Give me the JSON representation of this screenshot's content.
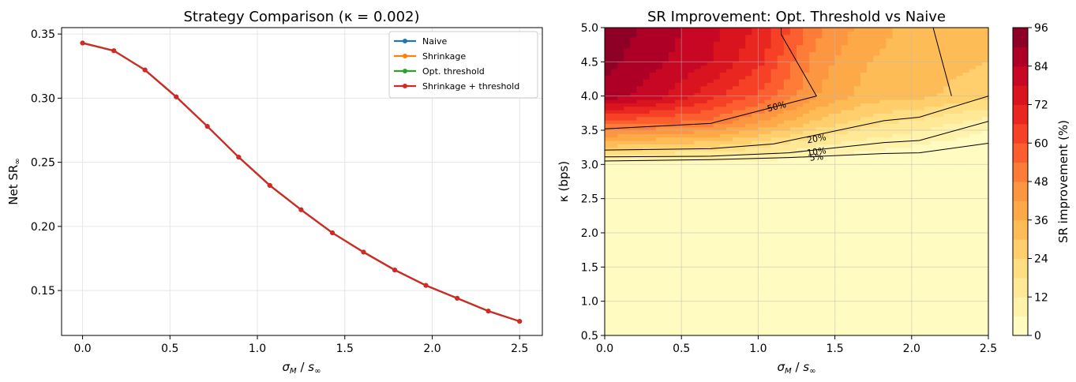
{
  "chart_data": [
    {
      "type": "line",
      "title": "Strategy Comparison (κ = 0.002)",
      "xlabel": "σ_M / s_∞",
      "ylabel": "Net SR∞",
      "xlim": [
        -0.12,
        2.63
      ],
      "ylim": [
        0.115,
        0.355
      ],
      "xticks": [
        0.0,
        0.5,
        1.0,
        1.5,
        2.0,
        2.5
      ],
      "xtick_labels": [
        "0.0",
        "0.5",
        "1.0",
        "1.5",
        "2.0",
        "2.5"
      ],
      "yticks": [
        0.15,
        0.2,
        0.25,
        0.3,
        0.35
      ],
      "ytick_labels": [
        "0.15",
        "0.20",
        "0.25",
        "0.30",
        "0.35"
      ],
      "grid": true,
      "legend_position": "top-right",
      "x": [
        0.0,
        0.179,
        0.357,
        0.536,
        0.714,
        0.893,
        1.071,
        1.25,
        1.429,
        1.607,
        1.786,
        1.964,
        2.143,
        2.321,
        2.5
      ],
      "series": [
        {
          "name": "Naive",
          "color": "#1f77b4",
          "values": [
            0.343,
            0.337,
            0.322,
            0.301,
            0.278,
            0.254,
            0.232,
            0.213,
            0.195,
            0.18,
            0.166,
            0.154,
            0.144,
            0.134,
            0.126
          ]
        },
        {
          "name": "Shrinkage",
          "color": "#ff7f0e",
          "values": [
            0.343,
            0.337,
            0.322,
            0.301,
            0.278,
            0.254,
            0.232,
            0.213,
            0.195,
            0.18,
            0.166,
            0.154,
            0.144,
            0.134,
            0.126
          ]
        },
        {
          "name": "Opt. threshold",
          "color": "#2ca02c",
          "values": [
            0.343,
            0.337,
            0.322,
            0.301,
            0.278,
            0.254,
            0.232,
            0.213,
            0.195,
            0.18,
            0.166,
            0.154,
            0.144,
            0.134,
            0.126
          ]
        },
        {
          "name": "Shrinkage + threshold",
          "color": "#d62728",
          "values": [
            0.343,
            0.337,
            0.322,
            0.301,
            0.278,
            0.254,
            0.232,
            0.213,
            0.195,
            0.18,
            0.166,
            0.154,
            0.144,
            0.134,
            0.126
          ]
        }
      ]
    },
    {
      "type": "heatmap",
      "title": "SR Improvement: Opt. Threshold vs Naive",
      "xlabel": "σ_M / s_∞",
      "ylabel": "κ (bps)",
      "xlim": [
        0.0,
        2.5
      ],
      "ylim": [
        0.5,
        5.0
      ],
      "xticks": [
        0.0,
        0.5,
        1.0,
        1.5,
        2.0,
        2.5
      ],
      "xtick_labels": [
        "0.0",
        "0.5",
        "1.0",
        "1.5",
        "2.0",
        "2.5"
      ],
      "yticks": [
        0.5,
        1.0,
        1.5,
        2.0,
        2.5,
        3.0,
        3.5,
        4.0,
        4.5,
        5.0
      ],
      "ytick_labels": [
        "0.5",
        "1.0",
        "1.5",
        "2.0",
        "2.5",
        "3.0",
        "3.5",
        "4.0",
        "4.5",
        "5.0"
      ],
      "grid": true,
      "colorbar": {
        "label": "SR improvement (%)",
        "ticks": [
          0,
          12,
          24,
          36,
          48,
          60,
          72,
          84,
          96
        ],
        "tick_labels": [
          "0",
          "12",
          "24",
          "36",
          "48",
          "60",
          "72",
          "84",
          "96"
        ],
        "range": [
          0,
          96
        ],
        "colormap": "YlOrRd"
      },
      "x_grid": [
        0.0,
        0.345,
        0.69,
        1.034,
        1.379,
        1.724,
        2.069,
        2.5
      ],
      "y_grid": [
        0.5,
        3.0,
        3.3,
        3.6,
        4.0,
        4.5,
        5.0
      ],
      "z": [
        [
          0,
          0,
          0,
          0,
          0,
          0,
          0,
          0
        ],
        [
          3,
          3,
          2,
          2,
          1,
          0,
          0,
          0
        ],
        [
          33,
          30,
          27,
          21,
          13,
          9,
          6,
          2
        ],
        [
          56,
          54,
          51,
          40,
          28,
          20,
          15,
          8
        ],
        [
          88,
          80,
          68,
          58,
          42,
          33,
          31,
          26
        ],
        [
          92,
          85,
          78,
          66,
          45,
          36,
          33,
          30
        ],
        [
          94,
          88,
          80,
          70,
          50,
          38,
          34,
          31
        ]
      ],
      "contours": [
        {
          "label": "5%",
          "x": [
            0.0,
            0.69,
            1.2,
            1.82,
            2.05,
            2.5
          ],
          "y": [
            3.05,
            3.07,
            3.1,
            3.16,
            3.17,
            3.31
          ]
        },
        {
          "label": "10%",
          "x": [
            0.0,
            0.69,
            1.2,
            1.82,
            2.05,
            2.5
          ],
          "y": [
            3.11,
            3.12,
            3.17,
            3.32,
            3.35,
            3.63
          ]
        },
        {
          "label": "20%",
          "x": [
            0.0,
            0.69,
            1.1,
            1.82,
            2.05,
            2.5
          ],
          "y": [
            3.21,
            3.23,
            3.3,
            3.64,
            3.69,
            4.0
          ]
        },
        {
          "label": "50%",
          "x": [
            0.0,
            0.69,
            1.0,
            1.38,
            1.15,
            1.15
          ],
          "y": [
            3.52,
            3.6,
            3.78,
            4.0,
            4.9,
            5.0
          ]
        },
        {
          "label": "",
          "x": [
            2.26,
            2.14
          ],
          "y": [
            4.0,
            5.0
          ]
        }
      ]
    }
  ]
}
